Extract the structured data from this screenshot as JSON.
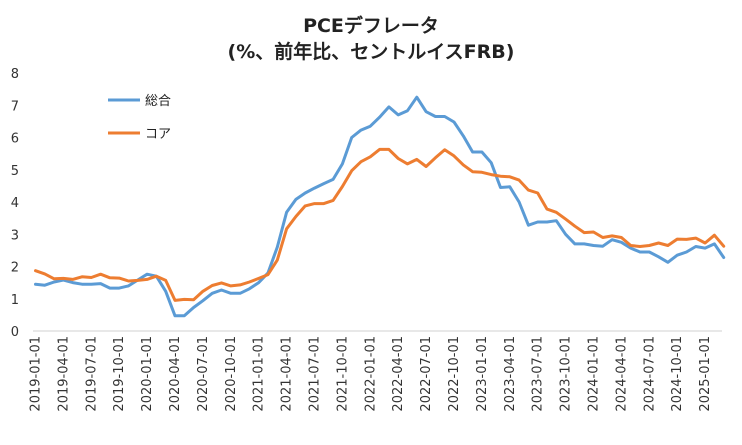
{
  "chart_data": {
    "type": "line",
    "title_lines": [
      "PCEデフレータ",
      "(%、前年比、セントルイスFRB)"
    ],
    "xlabel": "",
    "ylabel": "",
    "ylim": [
      0,
      8
    ],
    "yticks": [
      0,
      1,
      2,
      3,
      4,
      5,
      6,
      7,
      8
    ],
    "xticks": [
      "2019-01-01",
      "2019-04-01",
      "2019-07-01",
      "2019-10-01",
      "2020-01-01",
      "2020-04-01",
      "2020-07-01",
      "2020-10-01",
      "2021-01-01",
      "2021-04-01",
      "2021-07-01",
      "2021-10-01",
      "2022-01-01",
      "2022-04-01",
      "2022-07-01",
      "2022-10-01",
      "2023-01-01",
      "2023-04-01",
      "2023-07-01",
      "2023-10-01",
      "2024-01-01",
      "2024-04-01",
      "2024-07-01",
      "2024-10-01",
      "2025-01-01"
    ],
    "grid": false,
    "legend_position": "top-left",
    "series": [
      {
        "name": "総合",
        "color": "#5B9BD5",
        "values": [
          1.45,
          1.42,
          1.52,
          1.58,
          1.5,
          1.45,
          1.45,
          1.47,
          1.33,
          1.33,
          1.4,
          1.58,
          1.76,
          1.7,
          1.23,
          0.47,
          0.47,
          0.73,
          0.94,
          1.17,
          1.27,
          1.17,
          1.17,
          1.31,
          1.5,
          1.8,
          2.6,
          3.68,
          4.08,
          4.28,
          4.43,
          4.57,
          4.7,
          5.18,
          6.0,
          6.23,
          6.35,
          6.63,
          6.95,
          6.7,
          6.83,
          7.25,
          6.8,
          6.65,
          6.65,
          6.48,
          6.05,
          5.55,
          5.55,
          5.22,
          4.45,
          4.47,
          4.0,
          3.28,
          3.38,
          3.38,
          3.42,
          3.0,
          2.7,
          2.7,
          2.65,
          2.63,
          2.83,
          2.75,
          2.57,
          2.45,
          2.45,
          2.3,
          2.13,
          2.35,
          2.45,
          2.62,
          2.57,
          2.7,
          2.28
        ]
      },
      {
        "name": "コア",
        "color": "#ED7D31",
        "values": [
          1.87,
          1.77,
          1.62,
          1.63,
          1.6,
          1.68,
          1.66,
          1.76,
          1.65,
          1.64,
          1.55,
          1.57,
          1.6,
          1.7,
          1.57,
          0.95,
          0.98,
          0.97,
          1.23,
          1.41,
          1.49,
          1.4,
          1.43,
          1.52,
          1.63,
          1.75,
          2.2,
          3.17,
          3.55,
          3.88,
          3.95,
          3.95,
          4.05,
          4.48,
          4.97,
          5.25,
          5.4,
          5.63,
          5.63,
          5.35,
          5.18,
          5.32,
          5.1,
          5.37,
          5.62,
          5.43,
          5.15,
          4.94,
          4.92,
          4.85,
          4.8,
          4.78,
          4.68,
          4.37,
          4.28,
          3.78,
          3.68,
          3.47,
          3.25,
          3.05,
          3.07,
          2.9,
          2.95,
          2.9,
          2.65,
          2.62,
          2.65,
          2.73,
          2.65,
          2.85,
          2.84,
          2.88,
          2.73,
          2.97,
          2.63
        ]
      }
    ]
  }
}
